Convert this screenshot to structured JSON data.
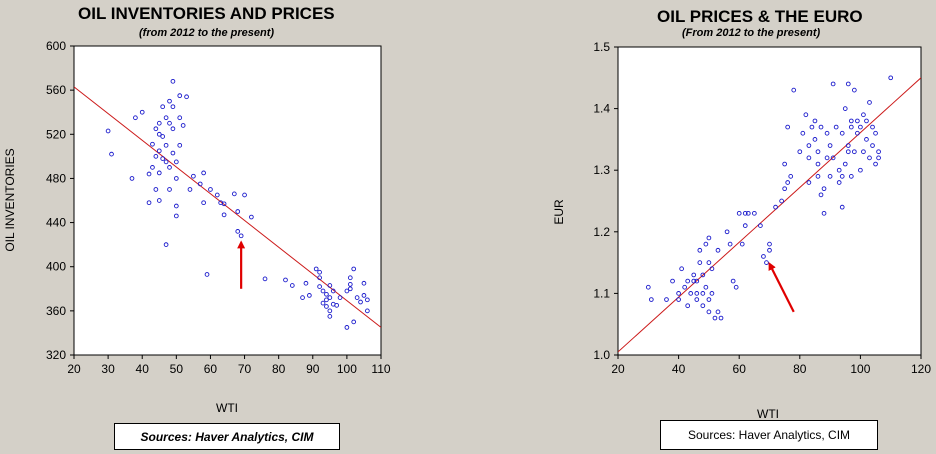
{
  "chart_data": [
    {
      "type": "scatter",
      "title": "OIL INVENTORIES AND PRICES",
      "subtitle": "(from 2012 to the present)",
      "xlabel": "WTI",
      "ylabel": "OIL INVENTORIES",
      "xlim": [
        20,
        110
      ],
      "ylim": [
        320,
        600
      ],
      "xticks": [
        20,
        30,
        40,
        50,
        60,
        70,
        80,
        90,
        100,
        110
      ],
      "yticks": [
        320,
        360,
        400,
        440,
        480,
        520,
        560,
        600
      ],
      "grid": false,
      "point_color": "#1a1acc",
      "fit_color": "#cc1a1a",
      "fit_line": [
        [
          20,
          563
        ],
        [
          110,
          345
        ]
      ],
      "arrow_color": "#e00000",
      "arrow": {
        "from": [
          69,
          380
        ],
        "to": [
          69,
          422
        ]
      },
      "source": "Sources:  Haver Analytics, CIM",
      "points": [
        [
          30,
          523
        ],
        [
          31,
          502
        ],
        [
          37,
          480
        ],
        [
          38,
          535
        ],
        [
          40,
          540
        ],
        [
          42,
          484
        ],
        [
          42,
          458
        ],
        [
          43,
          490
        ],
        [
          43,
          511
        ],
        [
          44,
          525
        ],
        [
          44,
          500
        ],
        [
          44,
          470
        ],
        [
          45,
          530
        ],
        [
          45,
          520
        ],
        [
          45,
          505
        ],
        [
          45,
          485
        ],
        [
          45,
          460
        ],
        [
          46,
          545
        ],
        [
          46,
          518
        ],
        [
          46,
          498
        ],
        [
          47,
          535
        ],
        [
          47,
          510
        ],
        [
          47,
          495
        ],
        [
          47,
          420
        ],
        [
          48,
          550
        ],
        [
          48,
          530
        ],
        [
          48,
          490
        ],
        [
          48,
          470
        ],
        [
          49,
          568
        ],
        [
          49,
          545
        ],
        [
          49,
          525
        ],
        [
          49,
          503
        ],
        [
          50,
          495
        ],
        [
          50,
          480
        ],
        [
          50,
          455
        ],
        [
          50,
          446
        ],
        [
          51,
          555
        ],
        [
          51,
          535
        ],
        [
          51,
          510
        ],
        [
          52,
          528
        ],
        [
          53,
          554
        ],
        [
          54,
          470
        ],
        [
          55,
          482
        ],
        [
          57,
          475
        ],
        [
          58,
          485
        ],
        [
          58,
          458
        ],
        [
          59,
          393
        ],
        [
          60,
          470
        ],
        [
          62,
          465
        ],
        [
          63,
          458
        ],
        [
          64,
          457
        ],
        [
          64,
          447
        ],
        [
          67,
          466
        ],
        [
          68,
          450
        ],
        [
          68,
          432
        ],
        [
          69,
          428
        ],
        [
          70,
          465
        ],
        [
          72,
          445
        ],
        [
          76,
          389
        ],
        [
          82,
          388
        ],
        [
          84,
          383
        ],
        [
          87,
          372
        ],
        [
          88,
          385
        ],
        [
          89,
          374
        ],
        [
          91,
          398
        ],
        [
          92,
          395
        ],
        [
          92,
          390
        ],
        [
          92,
          382
        ],
        [
          93,
          378
        ],
        [
          93,
          367
        ],
        [
          94,
          370
        ],
        [
          94,
          364
        ],
        [
          94,
          375
        ],
        [
          95,
          383
        ],
        [
          95,
          372
        ],
        [
          95,
          360
        ],
        [
          95,
          355
        ],
        [
          96,
          366
        ],
        [
          96,
          378
        ],
        [
          97,
          365
        ],
        [
          98,
          372
        ],
        [
          100,
          345
        ],
        [
          100,
          378
        ],
        [
          101,
          390
        ],
        [
          101,
          384
        ],
        [
          101,
          380
        ],
        [
          102,
          398
        ],
        [
          102,
          350
        ],
        [
          103,
          372
        ],
        [
          104,
          368
        ],
        [
          105,
          385
        ],
        [
          105,
          374
        ],
        [
          106,
          370
        ],
        [
          106,
          360
        ]
      ]
    },
    {
      "type": "scatter",
      "title": "OIL PRICES & THE EURO",
      "subtitle": "(From 2012 to the present)",
      "xlabel": "WTI",
      "ylabel": "EUR",
      "xlim": [
        20,
        120
      ],
      "ylim": [
        1.0,
        1.5
      ],
      "xticks": [
        20,
        40,
        60,
        80,
        100,
        120
      ],
      "yticks": [
        1.0,
        1.1,
        1.2,
        1.3,
        1.4,
        1.5
      ],
      "grid": false,
      "point_color": "#1a1acc",
      "fit_color": "#cc1a1a",
      "fit_line": [
        [
          20,
          1.005
        ],
        [
          120,
          1.45
        ]
      ],
      "arrow_color": "#e00000",
      "arrow": {
        "from": [
          78,
          1.07
        ],
        "to": [
          70,
          1.148
        ]
      },
      "source": "Sources:  Haver Analytics, CIM",
      "points": [
        [
          30,
          1.11
        ],
        [
          31,
          1.09
        ],
        [
          36,
          1.09
        ],
        [
          38,
          1.12
        ],
        [
          40,
          1.1
        ],
        [
          40,
          1.09
        ],
        [
          41,
          1.14
        ],
        [
          42,
          1.11
        ],
        [
          43,
          1.08
        ],
        [
          43,
          1.12
        ],
        [
          44,
          1.1
        ],
        [
          45,
          1.13
        ],
        [
          45,
          1.12
        ],
        [
          46,
          1.1
        ],
        [
          46,
          1.09
        ],
        [
          46,
          1.12
        ],
        [
          47,
          1.15
        ],
        [
          47,
          1.17
        ],
        [
          48,
          1.13
        ],
        [
          48,
          1.1
        ],
        [
          48,
          1.08
        ],
        [
          49,
          1.18
        ],
        [
          49,
          1.11
        ],
        [
          50,
          1.19
        ],
        [
          50,
          1.15
        ],
        [
          50,
          1.09
        ],
        [
          50,
          1.07
        ],
        [
          51,
          1.1
        ],
        [
          51,
          1.14
        ],
        [
          52,
          1.06
        ],
        [
          53,
          1.17
        ],
        [
          53,
          1.07
        ],
        [
          54,
          1.06
        ],
        [
          56,
          1.2
        ],
        [
          57,
          1.18
        ],
        [
          58,
          1.12
        ],
        [
          59,
          1.11
        ],
        [
          60,
          1.23
        ],
        [
          61,
          1.18
        ],
        [
          62,
          1.23
        ],
        [
          62,
          1.21
        ],
        [
          63,
          1.23
        ],
        [
          65,
          1.23
        ],
        [
          67,
          1.21
        ],
        [
          68,
          1.16
        ],
        [
          69,
          1.15
        ],
        [
          70,
          1.17
        ],
        [
          70,
          1.18
        ],
        [
          72,
          1.24
        ],
        [
          74,
          1.25
        ],
        [
          75,
          1.27
        ],
        [
          75,
          1.31
        ],
        [
          76,
          1.28
        ],
        [
          76,
          1.37
        ],
        [
          77,
          1.29
        ],
        [
          78,
          1.43
        ],
        [
          80,
          1.33
        ],
        [
          81,
          1.36
        ],
        [
          82,
          1.39
        ],
        [
          83,
          1.34
        ],
        [
          83,
          1.32
        ],
        [
          83,
          1.28
        ],
        [
          84,
          1.37
        ],
        [
          85,
          1.38
        ],
        [
          85,
          1.35
        ],
        [
          86,
          1.33
        ],
        [
          86,
          1.31
        ],
        [
          86,
          1.29
        ],
        [
          87,
          1.26
        ],
        [
          87,
          1.37
        ],
        [
          88,
          1.27
        ],
        [
          88,
          1.23
        ],
        [
          89,
          1.32
        ],
        [
          89,
          1.36
        ],
        [
          90,
          1.29
        ],
        [
          90,
          1.34
        ],
        [
          91,
          1.44
        ],
        [
          91,
          1.32
        ],
        [
          92,
          1.37
        ],
        [
          93,
          1.3
        ],
        [
          93,
          1.28
        ],
        [
          94,
          1.29
        ],
        [
          94,
          1.36
        ],
        [
          94,
          1.24
        ],
        [
          95,
          1.31
        ],
        [
          95,
          1.4
        ],
        [
          96,
          1.33
        ],
        [
          96,
          1.34
        ],
        [
          96,
          1.44
        ],
        [
          97,
          1.38
        ],
        [
          97,
          1.37
        ],
        [
          97,
          1.29
        ],
        [
          98,
          1.43
        ],
        [
          98,
          1.33
        ],
        [
          99,
          1.38
        ],
        [
          99,
          1.36
        ],
        [
          100,
          1.3
        ],
        [
          100,
          1.37
        ],
        [
          101,
          1.33
        ],
        [
          101,
          1.39
        ],
        [
          102,
          1.38
        ],
        [
          102,
          1.35
        ],
        [
          103,
          1.41
        ],
        [
          103,
          1.32
        ],
        [
          104,
          1.37
        ],
        [
          104,
          1.34
        ],
        [
          105,
          1.31
        ],
        [
          105,
          1.36
        ],
        [
          106,
          1.32
        ],
        [
          106,
          1.33
        ],
        [
          110,
          1.45
        ]
      ]
    }
  ]
}
